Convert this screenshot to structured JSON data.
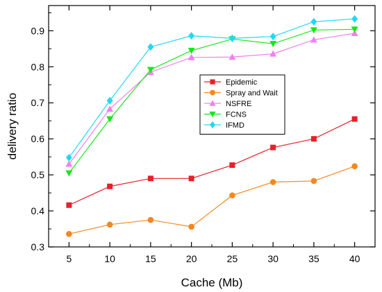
{
  "chart_data": {
    "type": "line",
    "title": "",
    "xlabel": "Cache (Mb)",
    "ylabel": "delivery ratio",
    "x": [
      5,
      10,
      15,
      20,
      25,
      30,
      35,
      40
    ],
    "xlim": [
      2.5,
      42.5
    ],
    "ylim": [
      0.3,
      0.97
    ],
    "yticks": [
      0.3,
      0.4,
      0.5,
      0.6,
      0.7,
      0.8,
      0.9
    ],
    "grid": false,
    "legend_position": "center",
    "series": [
      {
        "name": "Epidemic",
        "color": "#e8202a",
        "marker": "square",
        "values": [
          0.416,
          0.468,
          0.49,
          0.49,
          0.527,
          0.576,
          0.6,
          0.655
        ]
      },
      {
        "name": "Spray and Wait",
        "color": "#f5871f",
        "marker": "circle",
        "values": [
          0.336,
          0.362,
          0.375,
          0.356,
          0.443,
          0.48,
          0.483,
          0.524
        ]
      },
      {
        "name": "NSFRE",
        "color": "#f27ff0",
        "marker": "triangle-up",
        "values": [
          0.53,
          0.683,
          0.785,
          0.826,
          0.827,
          0.836,
          0.875,
          0.893
        ]
      },
      {
        "name": "FCNS",
        "color": "#19e619",
        "marker": "triangle-down",
        "values": [
          0.505,
          0.655,
          0.792,
          0.845,
          0.877,
          0.864,
          0.902,
          0.904
        ]
      },
      {
        "name": "IFMD",
        "color": "#22d8f2",
        "marker": "diamond",
        "values": [
          0.548,
          0.706,
          0.855,
          0.886,
          0.879,
          0.884,
          0.925,
          0.933
        ]
      }
    ]
  }
}
